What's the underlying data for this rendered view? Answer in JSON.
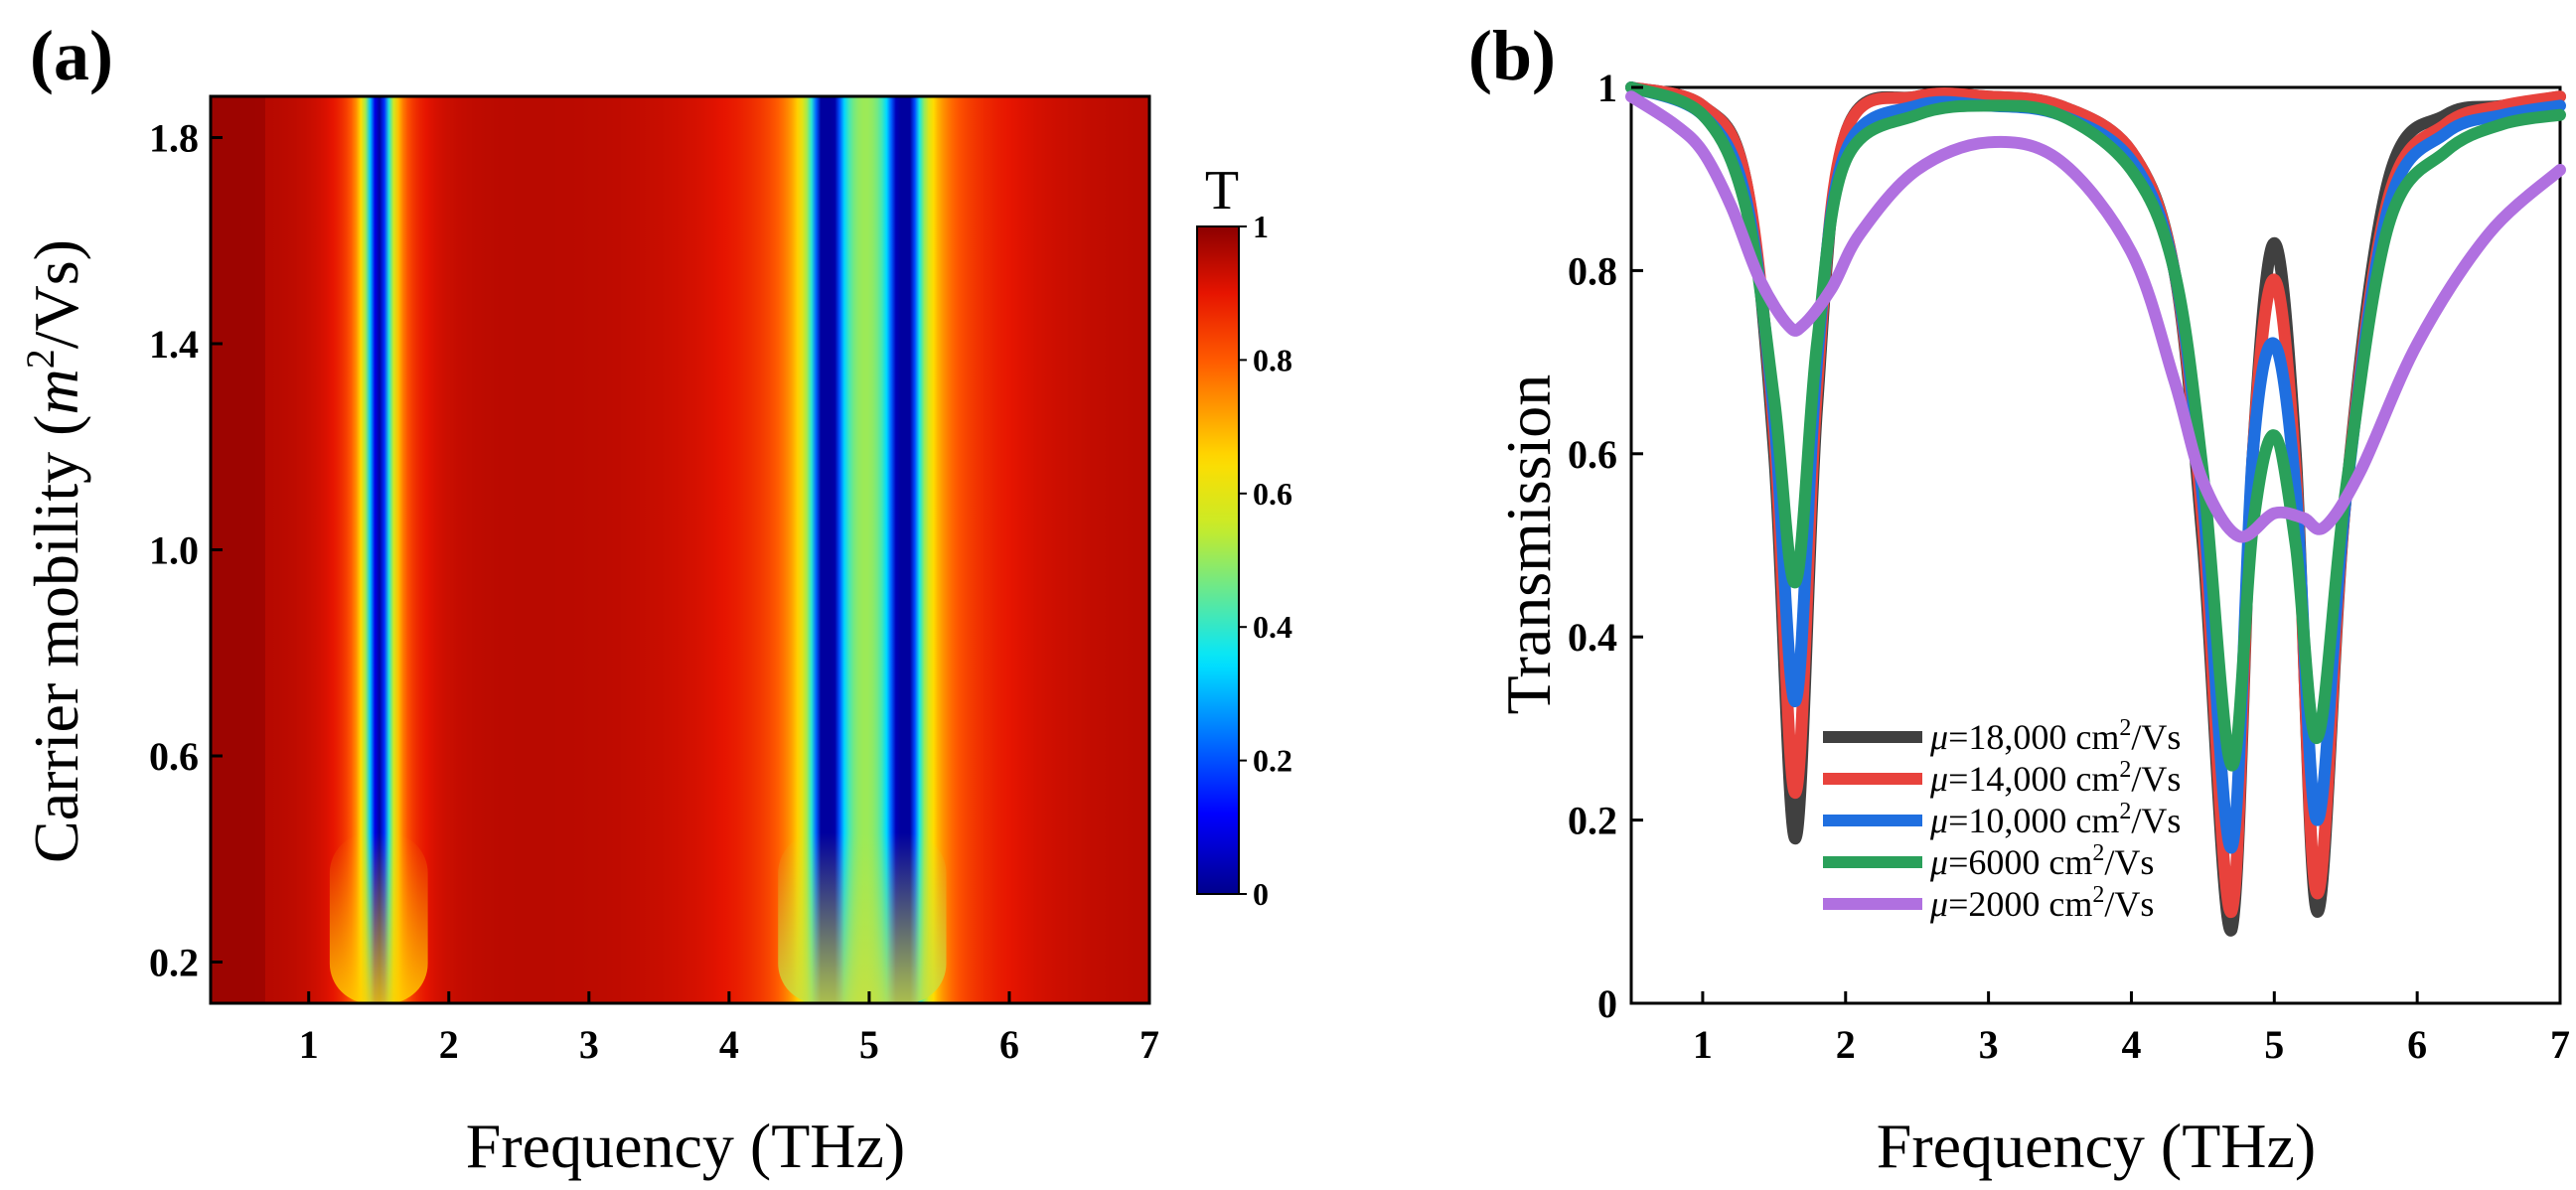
{
  "chart_data": [
    {
      "panel_label": "(a)",
      "type": "heatmap",
      "xlabel": "Frequency (THz)",
      "ylabel_prefix": "Carrier mobility (",
      "ylabel_m": "m",
      "ylabel_sup": "2",
      "ylabel_suffix": "/Vs)",
      "xlim": [
        0.3,
        7.0
      ],
      "ylim": [
        0.12,
        1.88
      ],
      "x_ticks": [
        1,
        2,
        3,
        4,
        5,
        6,
        7
      ],
      "x_tick_labels": [
        "1",
        "2",
        "3",
        "4",
        "5",
        "6",
        "7"
      ],
      "y_ticks": [
        0.2,
        0.6,
        1.0,
        1.4,
        1.8
      ],
      "y_tick_labels": [
        "0.2",
        "0.6",
        "1.0",
        "1.4",
        "1.8"
      ],
      "colorbar": {
        "title": "T",
        "range": [
          0,
          1
        ],
        "ticks": [
          0,
          0.2,
          0.4,
          0.6,
          0.8,
          1
        ],
        "tick_labels": [
          "0",
          "0.2",
          "0.4",
          "0.6",
          "0.8",
          "1"
        ]
      },
      "resonance_dips_THz": [
        1.5,
        4.7,
        5.25
      ],
      "value_description": "transmission T from 0 to 1"
    },
    {
      "panel_label": "(b)",
      "type": "line",
      "xlabel": "Frequency (THz)",
      "ylabel": "Transmission",
      "xlim": [
        0.5,
        7.0
      ],
      "ylim": [
        0,
        1
      ],
      "x_ticks": [
        1,
        2,
        3,
        4,
        5,
        6,
        7
      ],
      "x_tick_labels": [
        "1",
        "2",
        "3",
        "4",
        "5",
        "6",
        "7"
      ],
      "y_ticks": [
        0,
        0.2,
        0.4,
        0.6,
        0.8,
        1
      ],
      "y_tick_labels": [
        "0",
        "0.2",
        "0.4",
        "0.6",
        "0.8",
        "1"
      ],
      "legend_position": "bottom-center",
      "series": [
        {
          "name": "μ=18,000 cm²/Vs",
          "mu": "μ",
          "label_value": "=18,000 cm",
          "label_sup": "2",
          "label_unit": "/Vs",
          "color": "#404040",
          "x": [
            0.5,
            1.0,
            1.3,
            1.5,
            1.65,
            1.8,
            2.0,
            2.5,
            3.0,
            3.5,
            4.0,
            4.3,
            4.5,
            4.7,
            4.85,
            5.0,
            5.15,
            5.3,
            5.5,
            5.8,
            6.2,
            6.6,
            7.0
          ],
          "y": [
            1.0,
            0.98,
            0.9,
            0.6,
            0.18,
            0.65,
            0.95,
            0.99,
            0.99,
            0.98,
            0.93,
            0.8,
            0.5,
            0.08,
            0.6,
            0.83,
            0.6,
            0.1,
            0.55,
            0.9,
            0.97,
            0.98,
            0.99
          ]
        },
        {
          "name": "μ=14,000 cm²/Vs",
          "mu": "μ",
          "label_value": "=14,000 cm",
          "label_sup": "2",
          "label_unit": "/Vs",
          "color": "#e8423c",
          "x": [
            0.5,
            1.0,
            1.3,
            1.5,
            1.65,
            1.8,
            2.0,
            2.5,
            3.0,
            3.5,
            4.0,
            4.3,
            4.5,
            4.7,
            4.85,
            5.0,
            5.15,
            5.3,
            5.5,
            5.8,
            6.2,
            6.6,
            7.0
          ],
          "y": [
            1.0,
            0.98,
            0.9,
            0.62,
            0.23,
            0.67,
            0.95,
            0.99,
            0.99,
            0.98,
            0.93,
            0.8,
            0.52,
            0.1,
            0.6,
            0.79,
            0.58,
            0.12,
            0.55,
            0.88,
            0.96,
            0.98,
            0.99
          ]
        },
        {
          "name": "μ=10,000 cm²/Vs",
          "mu": "μ",
          "label_value": "=10,000 cm",
          "label_sup": "2",
          "label_unit": "/Vs",
          "color": "#1f6fe0",
          "x": [
            0.5,
            1.0,
            1.3,
            1.5,
            1.65,
            1.8,
            2.0,
            2.5,
            3.0,
            3.5,
            4.0,
            4.3,
            4.5,
            4.7,
            4.85,
            5.0,
            5.15,
            5.3,
            5.5,
            5.8,
            6.2,
            6.6,
            7.0
          ],
          "y": [
            1.0,
            0.97,
            0.88,
            0.64,
            0.33,
            0.7,
            0.93,
            0.98,
            0.98,
            0.97,
            0.92,
            0.8,
            0.55,
            0.17,
            0.6,
            0.72,
            0.56,
            0.2,
            0.55,
            0.87,
            0.95,
            0.97,
            0.98
          ]
        },
        {
          "name": "μ=6000 cm²/Vs",
          "mu": "μ",
          "label_value": "=6000 cm",
          "label_sup": "2",
          "label_unit": "/Vs",
          "color": "#2aa05a",
          "x": [
            0.5,
            1.0,
            1.3,
            1.5,
            1.65,
            1.8,
            2.0,
            2.5,
            3.0,
            3.5,
            4.0,
            4.3,
            4.5,
            4.7,
            4.85,
            5.0,
            5.15,
            5.3,
            5.5,
            5.8,
            6.2,
            6.6,
            7.0
          ],
          "y": [
            1.0,
            0.97,
            0.87,
            0.66,
            0.46,
            0.72,
            0.92,
            0.97,
            0.98,
            0.97,
            0.91,
            0.8,
            0.58,
            0.26,
            0.52,
            0.62,
            0.5,
            0.29,
            0.56,
            0.85,
            0.93,
            0.96,
            0.97
          ]
        },
        {
          "name": "μ=2000 cm²/Vs",
          "mu": "μ",
          "label_value": "=2000 cm",
          "label_sup": "2",
          "label_unit": "/Vs",
          "color": "#b070e0",
          "x": [
            0.5,
            0.8,
            1.0,
            1.2,
            1.4,
            1.6,
            1.7,
            1.9,
            2.1,
            2.5,
            3.0,
            3.5,
            4.0,
            4.3,
            4.5,
            4.75,
            5.0,
            5.2,
            5.35,
            5.6,
            6.0,
            6.5,
            7.0
          ],
          "y": [
            0.99,
            0.96,
            0.93,
            0.87,
            0.79,
            0.74,
            0.74,
            0.78,
            0.84,
            0.91,
            0.94,
            0.92,
            0.82,
            0.68,
            0.57,
            0.51,
            0.535,
            0.53,
            0.52,
            0.58,
            0.72,
            0.84,
            0.91
          ]
        }
      ]
    }
  ]
}
